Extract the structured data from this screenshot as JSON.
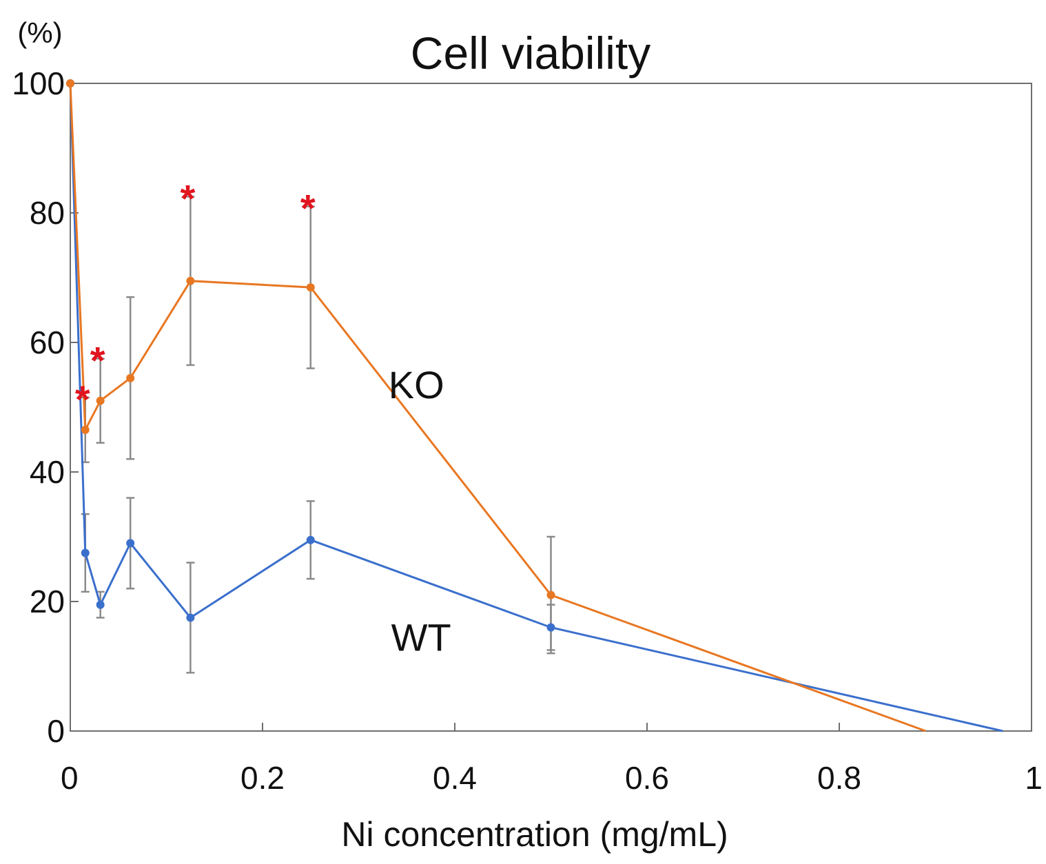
{
  "chart_data": {
    "type": "line",
    "title": "Cell viability",
    "xlabel": "Ni concentration (mg/mL)",
    "ylabel": "(%)",
    "xlim": [
      0,
      1
    ],
    "ylim": [
      0,
      100
    ],
    "xticks": [
      0,
      0.2,
      0.4,
      0.6,
      0.8,
      1
    ],
    "xtick_labels": [
      "0",
      "0.2",
      "0.4",
      "0.6",
      "0.8",
      "1"
    ],
    "yticks": [
      0,
      20,
      40,
      60,
      80,
      100
    ],
    "ytick_labels": [
      "0",
      "20",
      "40",
      "60",
      "80",
      "100"
    ],
    "grid": false,
    "series": [
      {
        "name": "KO",
        "color": "#e87722",
        "x": [
          0,
          0.0156,
          0.0313,
          0.0625,
          0.125,
          0.25,
          0.5,
          0.89
        ],
        "values": [
          100,
          46.5,
          51,
          54.5,
          69.5,
          68.5,
          21,
          0
        ],
        "error": [
          null,
          5,
          6.5,
          12.5,
          13,
          12.5,
          9,
          null
        ],
        "significant": [
          false,
          true,
          true,
          false,
          true,
          true,
          false,
          false
        ]
      },
      {
        "name": "WT",
        "color": "#3a6fcc",
        "x": [
          0,
          0.0156,
          0.0313,
          0.0625,
          0.125,
          0.25,
          0.5,
          0.97
        ],
        "values": [
          100,
          27.5,
          19.5,
          29,
          17.5,
          29.5,
          16,
          0
        ],
        "error": [
          null,
          6,
          2,
          7,
          8.5,
          6,
          3.5,
          null
        ],
        "significant": [
          false,
          false,
          false,
          false,
          false,
          false,
          false,
          false
        ]
      }
    ],
    "significance_marker": "*",
    "series_labels": [
      {
        "text": "KO",
        "x": 0.36,
        "y": 53.5
      },
      {
        "text": "WT",
        "x": 0.365,
        "y": 14.5
      }
    ]
  },
  "colors": {
    "errorbar": "#8a8a8a",
    "axis": "#6e6e6e",
    "significance": "#e0141e"
  }
}
